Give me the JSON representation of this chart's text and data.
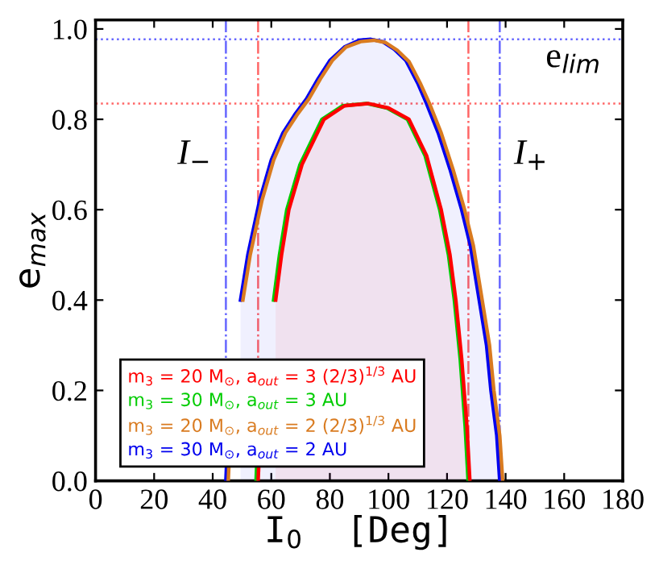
{
  "chart_data": {
    "type": "line",
    "xlabel": "I$_{0}$  [Deg]",
    "ylabel": "e$_{max}$",
    "xlim": [
      0,
      180
    ],
    "ylim": [
      0,
      1.02
    ],
    "xticks": [
      0,
      20,
      40,
      60,
      80,
      100,
      120,
      140,
      160,
      180
    ],
    "yticks": [
      {
        "value": 0,
        "label": "0.0"
      },
      {
        "value": 0.2,
        "label": "0.2"
      },
      {
        "value": 0.4,
        "label": "0.4"
      },
      {
        "value": 0.6,
        "label": "0.6"
      },
      {
        "value": 0.8,
        "label": "0.8"
      },
      {
        "value": 1.0,
        "label": "1.0"
      }
    ],
    "grid": false,
    "legend": "bottom left",
    "marker": "none",
    "line_style": "solid",
    "series": [
      {
        "name": "m$_{3}$ = 20 M$_{⊙}$, a$_{out}$ = 3 (2/3)$^{1/3}$ AU",
        "color": "#ff0000",
        "type": "area",
        "x": [
          55.5,
          55.7,
          58,
          59.5,
          61.5,
          63.5,
          66,
          70.5,
          78,
          85,
          93,
          100,
          107,
          113,
          118,
          121,
          123,
          125,
          126.8,
          127.8
        ],
        "values": [
          0,
          0.03,
          null,
          null,
          0.4,
          0.5,
          0.6,
          0.7,
          0.8,
          0.83,
          0.835,
          0.825,
          0.8,
          0.72,
          0.6,
          0.5,
          0.4,
          0.27,
          0.12,
          0
        ]
      },
      {
        "name": "m$_{3}$ = 30 M$_{⊙}$, a$_{out}$ = 3 AU",
        "color": "#00cc00",
        "x": [
          54.8,
          55.0,
          57.3,
          58.8,
          60.8,
          62.8,
          65.3,
          69.8,
          77.3,
          84.3,
          92.5,
          99.5,
          106.5,
          112.5,
          117.5,
          120.5,
          122.5,
          124.5,
          126.2,
          127.2
        ],
        "values": [
          0,
          0.03,
          null,
          null,
          0.4,
          0.5,
          0.6,
          0.7,
          0.8,
          0.83,
          0.835,
          0.825,
          0.8,
          0.72,
          0.6,
          0.5,
          0.4,
          0.27,
          0.12,
          0
        ]
      },
      {
        "name": "m$_{3}$ = 20 M$_{⊙}$, a$_{out}$ = 2 (2/3)$^{1/3}$ AU",
        "color": "#d97b20",
        "x": [
          45.3,
          45.5,
          48.8,
          50.3,
          52.8,
          56.8,
          60.8,
          64.8,
          68.8,
          72.8,
          76.8,
          80.8,
          85.5,
          90.5,
          95,
          99,
          103,
          107,
          111,
          114,
          118,
          122,
          126,
          129,
          132,
          134.5,
          136,
          138,
          139
        ],
        "values": [
          0,
          0.03,
          null,
          0.4,
          0.5,
          0.62,
          0.71,
          0.77,
          0.81,
          0.845,
          0.89,
          0.93,
          0.96,
          0.972,
          0.975,
          0.97,
          0.953,
          0.928,
          0.878,
          0.835,
          0.77,
          0.69,
          0.6,
          0.52,
          0.4,
          0.3,
          0.2,
          0.1,
          0
        ]
      },
      {
        "name": "m$_{3}$ = 30 M$_{⊙}$, a$_{out}$ = 2 AU",
        "color": "#0000ee",
        "type": "area",
        "x": [
          44.5,
          44.7,
          48,
          49.5,
          52,
          56,
          60,
          64,
          68,
          72,
          76,
          80,
          85,
          90,
          94,
          98,
          102,
          106,
          110,
          113,
          117,
          121,
          125,
          128,
          131,
          133.5,
          135,
          137,
          138
        ],
        "values": [
          0,
          0.03,
          null,
          0.4,
          0.5,
          0.62,
          0.71,
          0.77,
          0.81,
          0.845,
          0.89,
          0.93,
          0.96,
          0.975,
          0.977,
          0.972,
          0.955,
          0.93,
          0.88,
          0.835,
          0.77,
          0.69,
          0.6,
          0.52,
          0.4,
          0.3,
          0.2,
          0.1,
          0
        ]
      }
    ],
    "ref_lines": [
      {
        "axis": "y",
        "value": 0.977,
        "color": "#6666ff",
        "line_style": "dotted"
      },
      {
        "axis": "y",
        "value": 0.835,
        "color": "#ff6666",
        "line_style": "dotted",
        "label": "e$_{lim}$"
      },
      {
        "axis": "x",
        "value": 44.5,
        "color": "#6666ff",
        "line_style": "dashdot",
        "label": "I$_{−}$"
      },
      {
        "axis": "x",
        "value": 138,
        "color": "#6666ff",
        "line_style": "dashdot",
        "label": "I$_{+}$"
      },
      {
        "axis": "x",
        "value": 55.5,
        "color": "#ff6666",
        "line_style": "dashdot"
      },
      {
        "axis": "x",
        "value": 127.3,
        "color": "#ff6666",
        "line_style": "dashdot"
      }
    ]
  }
}
